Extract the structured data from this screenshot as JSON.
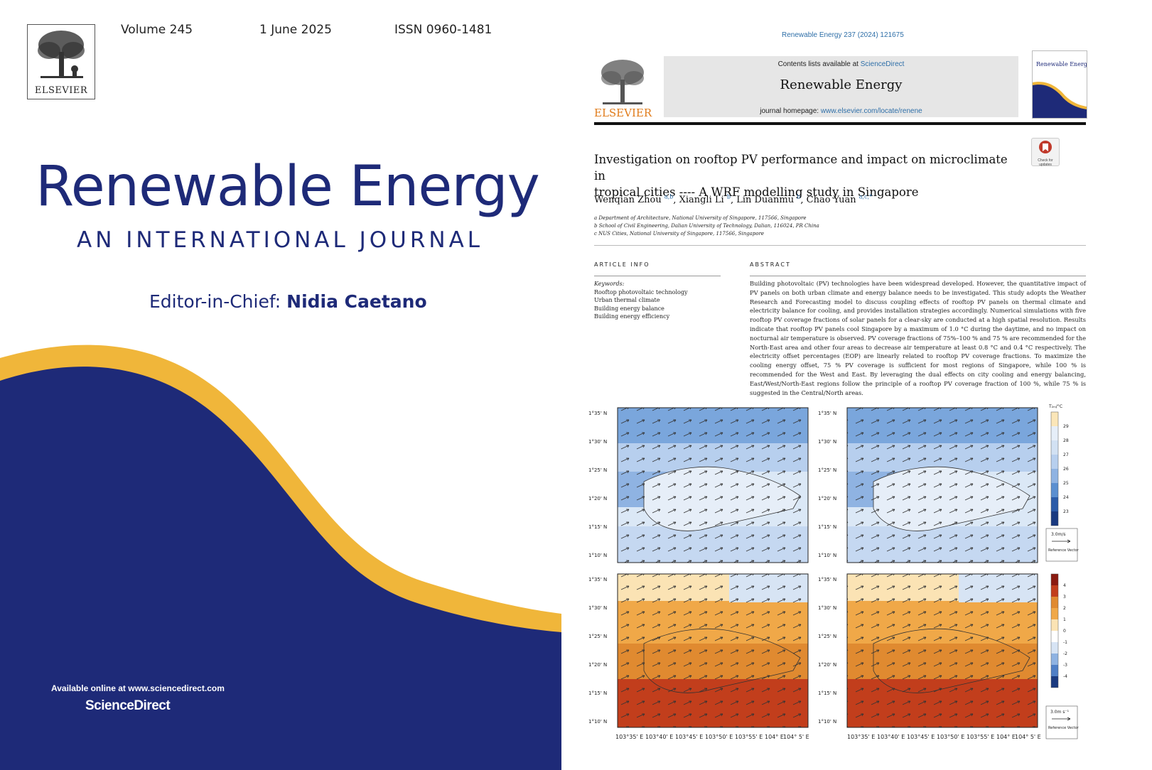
{
  "cover": {
    "volume": "Volume 245",
    "date": "1 June 2025",
    "issn": "ISSN 0960-1481",
    "publisher_logo_text": "ELSEVIER",
    "title": "Renewable Energy",
    "subtitle": "AN INTERNATIONAL JOURNAL",
    "editor_label": "Editor-in-Chief:",
    "editor_name": "Nidia Caetano",
    "available_online": "Available online at www.sciencedirect.com",
    "sciencedirect": "ScienceDirect",
    "colors": {
      "navy": "#1e2a78",
      "gold": "#f0b63a"
    }
  },
  "paper": {
    "citation": "Renewable Energy 237 (2024) 121675",
    "contents_prefix": "Contents lists available at ",
    "contents_link": "ScienceDirect",
    "journal_name": "Renewable Energy",
    "homepage_prefix": "journal homepage: ",
    "homepage_link": "www.elsevier.com/locate/renene",
    "publisher_logo_text": "ELSEVIER",
    "mini_cover_title": "Renewable Energy",
    "check_updates": "Check for updates",
    "title_line1": "Investigation on rooftop PV performance and impact on microclimate in",
    "title_line2": "tropical cities ---- A WRF modelling study in Singapore",
    "authors": [
      {
        "name": "Wenqian Zhou",
        "sup": "a,b"
      },
      {
        "name": "Xiangli Li",
        "sup": "b"
      },
      {
        "name": "Lin Duanmu",
        "sup": "b"
      },
      {
        "name": "Chao Yuan",
        "sup": "a,c,*"
      }
    ],
    "affiliations": [
      "a Department of Architecture, National University of Singapore, 117566, Singapore",
      "b School of Civil Engineering, Dalian University of Technology, Dalian, 116024, PR China",
      "c NUS Cities, National University of Singapore, 117566, Singapore"
    ],
    "article_info_heading": "ARTICLE INFO",
    "keywords_heading": "Keywords:",
    "keywords": [
      "Rooftop photovoltaic technology",
      "Urban thermal climate",
      "Building energy balance",
      "Building energy efficiency"
    ],
    "abstract_heading": "ABSTRACT",
    "abstract": "Building photovoltaic (PV) technologies have been widespread developed. However, the quantitative impact of PV panels on both urban climate and energy balance needs to be investigated. This study adopts the Weather Research and Forecasting model to discuss coupling effects of rooftop PV panels on thermal climate and electricity balance for cooling, and provides installation strategies accordingly. Numerical simulations with five rooftop PV coverage fractions of solar panels for a clear-sky are conducted at a high spatial resolution. Results indicate that rooftop PV panels cool Singapore by a maximum of 1.0 °C during the daytime, and no impact on nocturnal air temperature is observed. PV coverage fractions of 75%–100 % and 75 % are recommended for the North-East area and other four areas to decrease air temperature at least 0.8 °C and 0.4 °C respectively. The electricity offset percentages (EOP) are linearly related to rooftop PV coverage fractions. To maximize the cooling energy offset, 75 % PV coverage is sufficient for most regions of Singapore, while 100 % is recommended for the West and East. By leveraging the dual effects on city cooling and energy balancing, East/West/North-East regions follow the principle of a rooftop PV coverage fraction of 100 %, while 75 % is suggested in the Central/North areas."
  },
  "figure": {
    "lat_ticks": [
      "1°35' N",
      "1°30' N",
      "1°25' N",
      "1°20' N",
      "1°15' N",
      "1°10' N"
    ],
    "lon_ticks_left": [
      "103°35' E",
      "103°40' E",
      "103°45' E",
      "103°50' E",
      "103°55' E",
      "104° E",
      "104° 5' E"
    ],
    "lon_ticks_right": [
      "103°35' E",
      "103°40' E",
      "103°45' E",
      "103°50' E",
      "103°55' E",
      "104° E",
      "104° 5' E"
    ],
    "colorbar_top_label": "T₂ₘ/°C",
    "colorbar_top_ticks": [
      "29",
      "28",
      "27",
      "26",
      "25",
      "24",
      "23"
    ],
    "colorbar_bottom_ticks": [
      "4",
      "3",
      "2",
      "1",
      "0",
      "-1",
      "-2",
      "-3",
      "-4"
    ],
    "ref_vector_top": "3.0m/s",
    "ref_vector_bottom": "3.0m s⁻¹",
    "ref_vector_label": "Reference Vector"
  }
}
